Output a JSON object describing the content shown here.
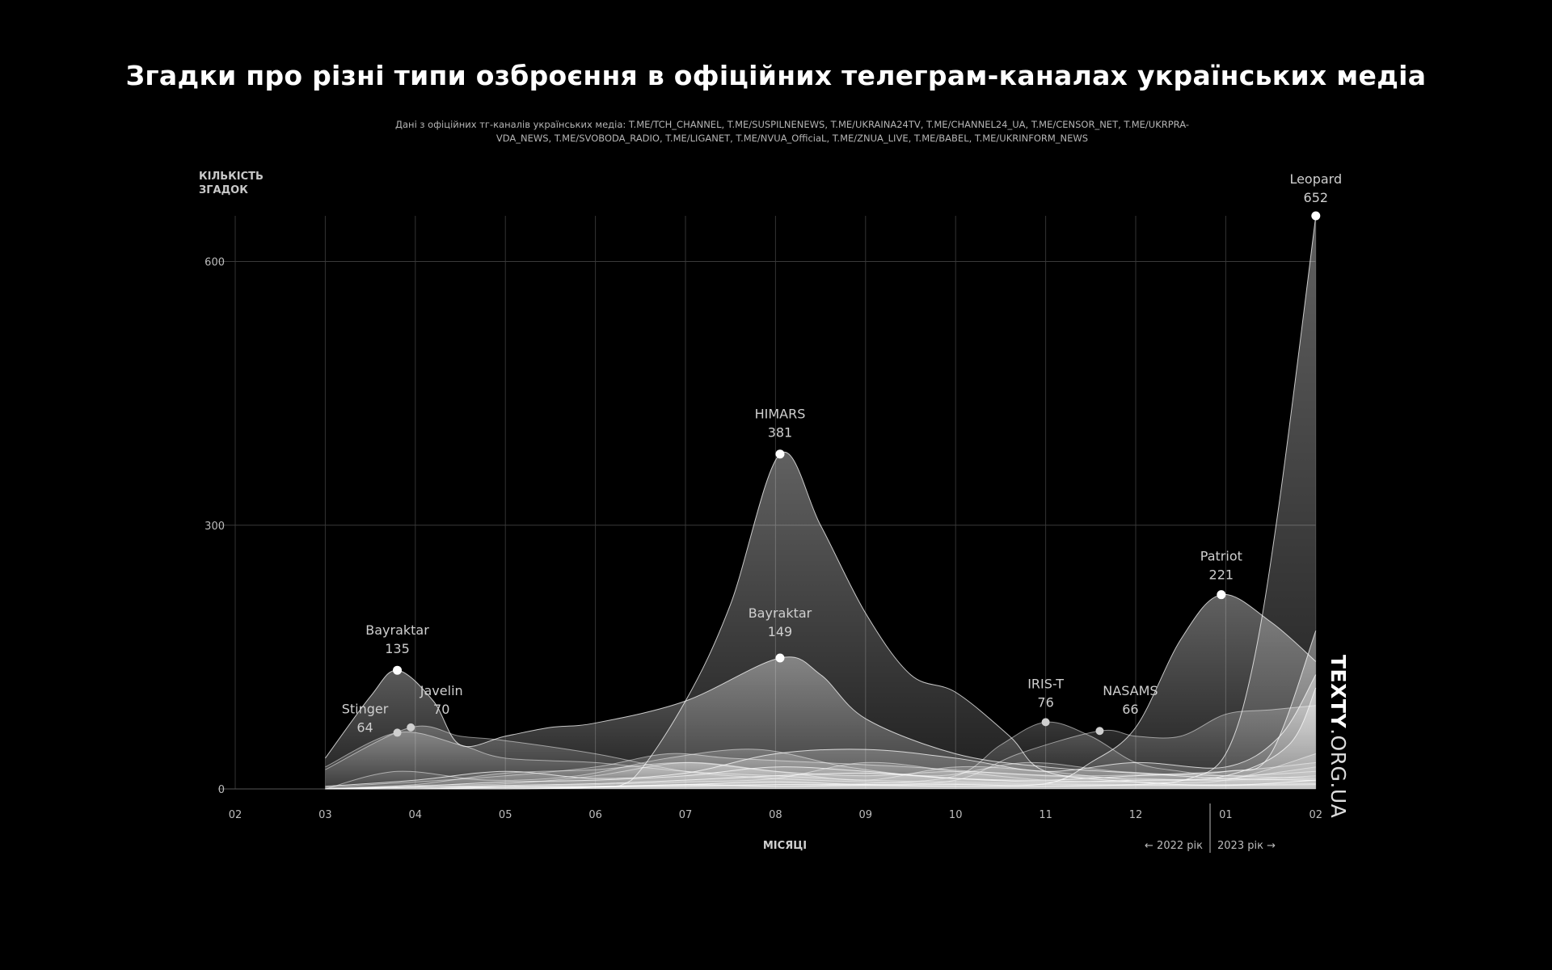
{
  "title": "Згадки про різні типи озброєння в офіційних телеграм-каналах українських медіа",
  "subtitle_line1": "Дані з офіційних тг-каналів українських медіа: T.ME/TCH_CHANNEL, T.ME/SUSPILNENEWS, T.ME/UKRAINA24TV, T.ME/CHANNEL24_UA, T.ME/CENSOR_NET, T.ME/UKRPRA-",
  "subtitle_line2": "VDA_NEWS, T.ME/SVOBODA_RADIO, T.ME/LIGANET, T.ME/NVUA_OfficiaL, T.ME/ZNUA_LIVE, T.ME/BABEL, T.ME/UKRINFORM_NEWS",
  "logo_bold": "TEXTY",
  "logo_light": ".ORG.UA",
  "colors": {
    "background": "#000000",
    "foreground": "#ffffff",
    "grid": "#3a3a3a"
  },
  "chart_data": {
    "type": "area",
    "ylabel_line1": "КІЛЬКІСТЬ",
    "ylabel_line2": "ЗГАДОК",
    "xlabel": "МІСЯЦІ",
    "x": [
      "02",
      "03",
      "04",
      "05",
      "06",
      "07",
      "08",
      "09",
      "10",
      "11",
      "12",
      "01",
      "02"
    ],
    "ylim": [
      0,
      652
    ],
    "yticks": [
      0,
      300,
      600
    ],
    "year_left": "← 2022 рік",
    "year_right": "2023 рік →",
    "grid": true,
    "annotations": [
      {
        "name": "Leopard",
        "value": 652,
        "x": 12.0
      },
      {
        "name": "HIMARS",
        "value": 381,
        "x": 6.05
      },
      {
        "name": "Patriot",
        "value": 221,
        "x": 10.95
      },
      {
        "name": "Bayraktar",
        "value": 149,
        "x": 6.05
      },
      {
        "name": "Bayraktar",
        "value": 135,
        "x": 1.8
      },
      {
        "name": "IRIS-T",
        "value": 76,
        "x": 9.0
      },
      {
        "name": "Javelin",
        "value": 70,
        "x": 1.95
      },
      {
        "name": "NASAMS",
        "value": 66,
        "x": 9.6
      },
      {
        "name": "Stinger",
        "value": 64,
        "x": 1.8
      }
    ],
    "series": [
      {
        "name": "HIMARS",
        "points": [
          [
            1,
            0
          ],
          [
            2,
            0
          ],
          [
            3,
            0
          ],
          [
            4,
            2
          ],
          [
            4.4,
            10
          ],
          [
            5,
            100
          ],
          [
            5.5,
            210
          ],
          [
            6.05,
            381
          ],
          [
            6.5,
            300
          ],
          [
            7,
            200
          ],
          [
            7.5,
            130
          ],
          [
            8,
            110
          ],
          [
            8.6,
            60
          ],
          [
            9,
            20
          ],
          [
            10,
            8
          ],
          [
            11,
            4
          ],
          [
            12,
            10
          ]
        ]
      },
      {
        "name": "Leopard",
        "points": [
          [
            1,
            0
          ],
          [
            2,
            0
          ],
          [
            3,
            2
          ],
          [
            4,
            2
          ],
          [
            5,
            5
          ],
          [
            6,
            3
          ],
          [
            7,
            4
          ],
          [
            8,
            3
          ],
          [
            9,
            3
          ],
          [
            10,
            5
          ],
          [
            10.6,
            12
          ],
          [
            11,
            40
          ],
          [
            11.3,
            140
          ],
          [
            11.6,
            330
          ],
          [
            12,
            652
          ]
        ]
      },
      {
        "name": "Patriot",
        "points": [
          [
            1,
            0
          ],
          [
            2,
            2
          ],
          [
            3,
            2
          ],
          [
            4,
            3
          ],
          [
            5,
            5
          ],
          [
            6,
            8
          ],
          [
            7,
            5
          ],
          [
            8,
            5
          ],
          [
            9,
            6
          ],
          [
            9.5,
            30
          ],
          [
            10,
            70
          ],
          [
            10.5,
            170
          ],
          [
            10.95,
            221
          ],
          [
            11.5,
            190
          ],
          [
            12,
            145
          ]
        ]
      },
      {
        "name": "Bayraktar",
        "points": [
          [
            1,
            35
          ],
          [
            1.5,
            105
          ],
          [
            1.8,
            135
          ],
          [
            2.2,
            100
          ],
          [
            2.5,
            50
          ],
          [
            3,
            60
          ],
          [
            3.5,
            70
          ],
          [
            4,
            75
          ],
          [
            5,
            100
          ],
          [
            6.05,
            149
          ],
          [
            6.5,
            130
          ],
          [
            7,
            80
          ],
          [
            8,
            40
          ],
          [
            9,
            25
          ],
          [
            10,
            18
          ],
          [
            11,
            12
          ],
          [
            12,
            10
          ]
        ]
      },
      {
        "name": "Stinger",
        "points": [
          [
            1,
            25
          ],
          [
            1.8,
            64
          ],
          [
            2.5,
            50
          ],
          [
            3,
            35
          ],
          [
            4,
            30
          ],
          [
            5,
            20
          ],
          [
            6,
            15
          ],
          [
            7,
            10
          ],
          [
            8,
            8
          ],
          [
            9,
            6
          ],
          [
            10,
            5
          ],
          [
            11,
            5
          ],
          [
            12,
            6
          ]
        ]
      },
      {
        "name": "Javelin",
        "points": [
          [
            1,
            22
          ],
          [
            1.95,
            70
          ],
          [
            2.5,
            60
          ],
          [
            3,
            55
          ],
          [
            4,
            40
          ],
          [
            5,
            20
          ],
          [
            6,
            12
          ],
          [
            7,
            8
          ],
          [
            8,
            6
          ],
          [
            9,
            5
          ],
          [
            10,
            4
          ],
          [
            11,
            4
          ],
          [
            12,
            5
          ]
        ]
      },
      {
        "name": "IRIS-T",
        "points": [
          [
            1,
            0
          ],
          [
            2,
            0
          ],
          [
            3,
            0
          ],
          [
            4,
            2
          ],
          [
            5,
            3
          ],
          [
            6,
            5
          ],
          [
            7,
            6
          ],
          [
            8,
            15
          ],
          [
            8.5,
            50
          ],
          [
            9,
            76
          ],
          [
            9.5,
            60
          ],
          [
            10,
            30
          ],
          [
            10.5,
            20
          ],
          [
            11,
            15
          ],
          [
            12,
            12
          ]
        ]
      },
      {
        "name": "NASAMS",
        "points": [
          [
            1,
            0
          ],
          [
            2,
            0
          ],
          [
            3,
            2
          ],
          [
            4,
            3
          ],
          [
            5,
            4
          ],
          [
            6,
            5
          ],
          [
            7,
            5
          ],
          [
            8,
            10
          ],
          [
            8.7,
            40
          ],
          [
            9.6,
            66
          ],
          [
            10,
            60
          ],
          [
            10.5,
            60
          ],
          [
            11,
            85
          ],
          [
            11.5,
            90
          ],
          [
            12,
            95
          ]
        ]
      },
      {
        "name": "",
        "points": [
          [
            1,
            0
          ],
          [
            2,
            5
          ],
          [
            3,
            18
          ],
          [
            4,
            22
          ],
          [
            5,
            30
          ],
          [
            6,
            20
          ],
          [
            7,
            15
          ],
          [
            8,
            20
          ],
          [
            9,
            15
          ],
          [
            10,
            12
          ],
          [
            11,
            10
          ],
          [
            12,
            15
          ]
        ]
      },
      {
        "name": "",
        "points": [
          [
            1,
            2
          ],
          [
            2,
            8
          ],
          [
            3,
            15
          ],
          [
            4,
            25
          ],
          [
            4.8,
            40
          ],
          [
            5.5,
            35
          ],
          [
            6.5,
            30
          ],
          [
            7.5,
            25
          ],
          [
            8.5,
            18
          ],
          [
            9.5,
            15
          ],
          [
            11,
            20
          ],
          [
            12,
            30
          ]
        ]
      },
      {
        "name": "",
        "points": [
          [
            1,
            0
          ],
          [
            1.8,
            20
          ],
          [
            2.8,
            10
          ],
          [
            3.8,
            15
          ],
          [
            4.8,
            35
          ],
          [
            5.8,
            45
          ],
          [
            6.8,
            25
          ],
          [
            7.8,
            15
          ],
          [
            8.8,
            30
          ],
          [
            9.8,
            20
          ],
          [
            11,
            15
          ],
          [
            12,
            20
          ]
        ]
      },
      {
        "name": "",
        "points": [
          [
            1,
            3
          ],
          [
            2,
            10
          ],
          [
            3,
            20
          ],
          [
            4,
            12
          ],
          [
            5,
            18
          ],
          [
            6,
            40
          ],
          [
            7,
            45
          ],
          [
            8,
            35
          ],
          [
            9,
            20
          ],
          [
            10,
            30
          ],
          [
            11,
            25
          ],
          [
            11.6,
            60
          ],
          [
            12,
            130
          ]
        ]
      },
      {
        "name": "",
        "points": [
          [
            1,
            0
          ],
          [
            2,
            3
          ],
          [
            3,
            8
          ],
          [
            4,
            10
          ],
          [
            5,
            15
          ],
          [
            6,
            25
          ],
          [
            7,
            20
          ],
          [
            8,
            12
          ],
          [
            9,
            8
          ],
          [
            10,
            10
          ],
          [
            11,
            15
          ],
          [
            11.7,
            50
          ],
          [
            12,
            115
          ]
        ]
      },
      {
        "name": "",
        "points": [
          [
            1,
            0
          ],
          [
            2,
            2
          ],
          [
            3,
            4
          ],
          [
            4,
            6
          ],
          [
            5,
            10
          ],
          [
            6,
            15
          ],
          [
            7,
            18
          ],
          [
            8,
            12
          ],
          [
            9,
            10
          ],
          [
            10,
            15
          ],
          [
            11,
            20
          ],
          [
            11.5,
            40
          ],
          [
            12,
            180
          ]
        ]
      },
      {
        "name": "",
        "points": [
          [
            1,
            1
          ],
          [
            2,
            4
          ],
          [
            3,
            6
          ],
          [
            4,
            15
          ],
          [
            5,
            30
          ],
          [
            6,
            20
          ],
          [
            7,
            10
          ],
          [
            8,
            25
          ],
          [
            9,
            20
          ],
          [
            10,
            10
          ],
          [
            11,
            12
          ],
          [
            12,
            25
          ]
        ]
      },
      {
        "name": "",
        "points": [
          [
            1,
            0
          ],
          [
            2,
            2
          ],
          [
            3,
            3
          ],
          [
            4,
            5
          ],
          [
            5,
            8
          ],
          [
            6,
            12
          ],
          [
            7,
            30
          ],
          [
            8,
            20
          ],
          [
            9,
            10
          ],
          [
            10,
            8
          ],
          [
            11,
            10
          ],
          [
            12,
            40
          ]
        ]
      }
    ]
  }
}
